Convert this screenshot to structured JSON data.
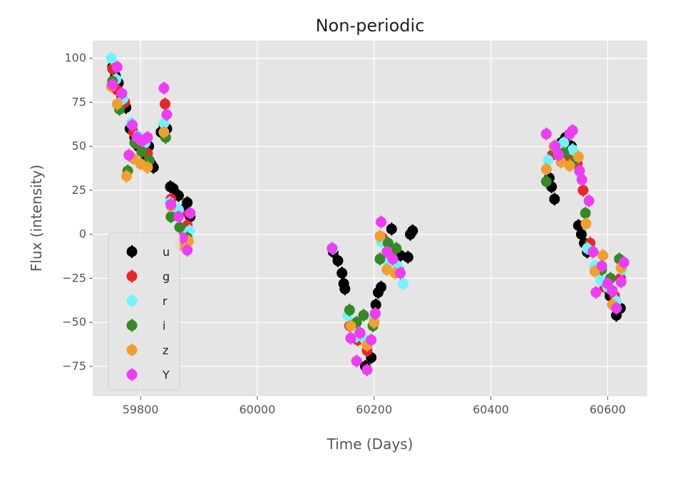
{
  "chart_data": {
    "type": "scatter",
    "title": "Non-periodic",
    "xlabel": "Time (Days)",
    "ylabel": "Flux (intensity)",
    "xlim": [
      59718,
      60668
    ],
    "ylim": [
      -92,
      110
    ],
    "xticks": [
      59800,
      60000,
      60200,
      60400,
      60600
    ],
    "xtick_labels": [
      "59800",
      "60000",
      "60200",
      "60400",
      "60600"
    ],
    "yticks": [
      100,
      75,
      50,
      25,
      0,
      -25,
      -50,
      -75
    ],
    "ytick_labels": [
      "100",
      "75",
      "50",
      "25",
      "0",
      "−25",
      "−50",
      "−75"
    ],
    "grid": true,
    "background": "#e5e5e5",
    "legend_position": "lower-left",
    "error_bars": true,
    "series": [
      {
        "name": "u",
        "color": "#000000",
        "points": [
          [
            59752,
            95
          ],
          [
            59757,
            90
          ],
          [
            59762,
            86
          ],
          [
            59768,
            78
          ],
          [
            59775,
            72
          ],
          [
            59782,
            60
          ],
          [
            59790,
            55
          ],
          [
            59796,
            50
          ],
          [
            59802,
            48
          ],
          [
            59808,
            45
          ],
          [
            59814,
            50
          ],
          [
            59818,
            40
          ],
          [
            59822,
            38
          ],
          [
            59835,
            58
          ],
          [
            59840,
            62
          ],
          [
            59845,
            60
          ],
          [
            59851,
            27
          ],
          [
            59856,
            26
          ],
          [
            59865,
            22
          ],
          [
            59873,
            14
          ],
          [
            59880,
            18
          ],
          [
            59885,
            10
          ],
          [
            60130,
            -10
          ],
          [
            60138,
            -15
          ],
          [
            60145,
            -22
          ],
          [
            60148,
            -28
          ],
          [
            60150,
            -31
          ],
          [
            60185,
            -75
          ],
          [
            60195,
            -70
          ],
          [
            60203,
            -40
          ],
          [
            60207,
            -33
          ],
          [
            60212,
            -30
          ],
          [
            60230,
            3
          ],
          [
            60238,
            -10
          ],
          [
            60245,
            -12
          ],
          [
            60258,
            -13
          ],
          [
            60262,
            0
          ],
          [
            60266,
            2
          ],
          [
            60500,
            32
          ],
          [
            60504,
            27
          ],
          [
            60509,
            20
          ],
          [
            60520,
            52
          ],
          [
            60528,
            55
          ],
          [
            60538,
            50
          ],
          [
            60550,
            5
          ],
          [
            60555,
            0
          ],
          [
            60560,
            -5
          ],
          [
            60565,
            -10
          ],
          [
            60598,
            -30
          ],
          [
            60604,
            -35
          ],
          [
            60610,
            -40
          ],
          [
            60615,
            -46
          ],
          [
            60622,
            -42
          ]
        ]
      },
      {
        "name": "g",
        "color": "#e8262a",
        "points": [
          [
            59752,
            94
          ],
          [
            59760,
            82
          ],
          [
            59773,
            75
          ],
          [
            59788,
            58
          ],
          [
            59798,
            51
          ],
          [
            59812,
            46
          ],
          [
            59842,
            74
          ],
          [
            59852,
            20
          ],
          [
            59868,
            12
          ],
          [
            59880,
            5
          ],
          [
            60158,
            -52
          ],
          [
            60172,
            -60
          ],
          [
            60188,
            -66
          ],
          [
            60202,
            -45
          ],
          [
            60214,
            -2
          ],
          [
            60228,
            -12
          ],
          [
            60242,
            -20
          ],
          [
            60505,
            45
          ],
          [
            60520,
            48
          ],
          [
            60535,
            43
          ],
          [
            60548,
            40
          ],
          [
            60558,
            25
          ],
          [
            60570,
            -5
          ],
          [
            60582,
            -20
          ],
          [
            60595,
            -30
          ],
          [
            60612,
            -35
          ],
          [
            60622,
            -25
          ]
        ]
      },
      {
        "name": "r",
        "color": "#6ff4ff",
        "points": [
          [
            59750,
            100
          ],
          [
            59758,
            88
          ],
          [
            59770,
            77
          ],
          [
            59784,
            63
          ],
          [
            59796,
            56
          ],
          [
            59808,
            52
          ],
          [
            59840,
            63
          ],
          [
            59850,
            18
          ],
          [
            59865,
            14
          ],
          [
            59884,
            2
          ],
          [
            60130,
            -8
          ],
          [
            60155,
            -46
          ],
          [
            60170,
            -58
          ],
          [
            60185,
            -60
          ],
          [
            60200,
            -48
          ],
          [
            60212,
            -4
          ],
          [
            60225,
            -16
          ],
          [
            60240,
            -18
          ],
          [
            60250,
            -28
          ],
          [
            60498,
            42
          ],
          [
            60512,
            50
          ],
          [
            60525,
            52
          ],
          [
            60540,
            48
          ],
          [
            60552,
            35
          ],
          [
            60565,
            -8
          ],
          [
            60578,
            -18
          ],
          [
            60588,
            -26
          ],
          [
            60600,
            -30
          ],
          [
            60615,
            -38
          ],
          [
            60625,
            -20
          ]
        ]
      },
      {
        "name": "i",
        "color": "#348a26",
        "points": [
          [
            59752,
            87
          ],
          [
            59764,
            71
          ],
          [
            59778,
            36
          ],
          [
            59790,
            52
          ],
          [
            59802,
            47
          ],
          [
            59815,
            42
          ],
          [
            59843,
            55
          ],
          [
            59852,
            10
          ],
          [
            59867,
            4
          ],
          [
            59880,
            -2
          ],
          [
            60158,
            -43
          ],
          [
            60170,
            -50
          ],
          [
            60182,
            -46
          ],
          [
            60198,
            -52
          ],
          [
            60210,
            -14
          ],
          [
            60224,
            -5
          ],
          [
            60238,
            -8
          ],
          [
            60495,
            30
          ],
          [
            60510,
            48
          ],
          [
            60525,
            46
          ],
          [
            60540,
            41
          ],
          [
            60562,
            12
          ],
          [
            60575,
            -10
          ],
          [
            60590,
            -20
          ],
          [
            60605,
            -25
          ],
          [
            60620,
            -14
          ]
        ]
      },
      {
        "name": "z",
        "color": "#f0a030",
        "points": [
          [
            59750,
            84
          ],
          [
            59760,
            74
          ],
          [
            59776,
            33
          ],
          [
            59788,
            43
          ],
          [
            59800,
            40
          ],
          [
            59812,
            38
          ],
          [
            59840,
            58
          ],
          [
            59852,
            16
          ],
          [
            59868,
            -6
          ],
          [
            59882,
            -4
          ],
          [
            60160,
            -52
          ],
          [
            60175,
            -56
          ],
          [
            60188,
            -63
          ],
          [
            60200,
            -50
          ],
          [
            60210,
            -1
          ],
          [
            60222,
            -20
          ],
          [
            60236,
            -22
          ],
          [
            60495,
            37
          ],
          [
            60508,
            50
          ],
          [
            60520,
            41
          ],
          [
            60535,
            39
          ],
          [
            60550,
            44
          ],
          [
            60563,
            6
          ],
          [
            60578,
            -21
          ],
          [
            60592,
            -12
          ],
          [
            60608,
            -40
          ],
          [
            60623,
            -19
          ]
        ]
      },
      {
        "name": "Y",
        "color": "#ee3cf5",
        "points": [
          [
            59752,
            85
          ],
          [
            59760,
            95
          ],
          [
            59768,
            80
          ],
          [
            59780,
            45
          ],
          [
            59786,
            62
          ],
          [
            59794,
            55
          ],
          [
            59802,
            53
          ],
          [
            59812,
            55
          ],
          [
            59840,
            83
          ],
          [
            59845,
            68
          ],
          [
            59852,
            17
          ],
          [
            59865,
            10
          ],
          [
            59872,
            -2
          ],
          [
            59885,
            12
          ],
          [
            59880,
            -9
          ],
          [
            60128,
            -8
          ],
          [
            60160,
            -59
          ],
          [
            60170,
            -72
          ],
          [
            60176,
            -56
          ],
          [
            60188,
            -77
          ],
          [
            60195,
            -60
          ],
          [
            60202,
            -45
          ],
          [
            60212,
            7
          ],
          [
            60222,
            -10
          ],
          [
            60232,
            -14
          ],
          [
            60245,
            -22
          ],
          [
            60495,
            57
          ],
          [
            60510,
            50
          ],
          [
            60516,
            45
          ],
          [
            60535,
            57
          ],
          [
            60540,
            59
          ],
          [
            60552,
            36
          ],
          [
            60556,
            31
          ],
          [
            60568,
            19
          ],
          [
            60575,
            -10
          ],
          [
            60580,
            -33
          ],
          [
            60590,
            -18
          ],
          [
            60600,
            -28
          ],
          [
            60608,
            -32
          ],
          [
            60615,
            -42
          ],
          [
            60623,
            -27
          ],
          [
            60628,
            -16
          ]
        ]
      }
    ]
  }
}
